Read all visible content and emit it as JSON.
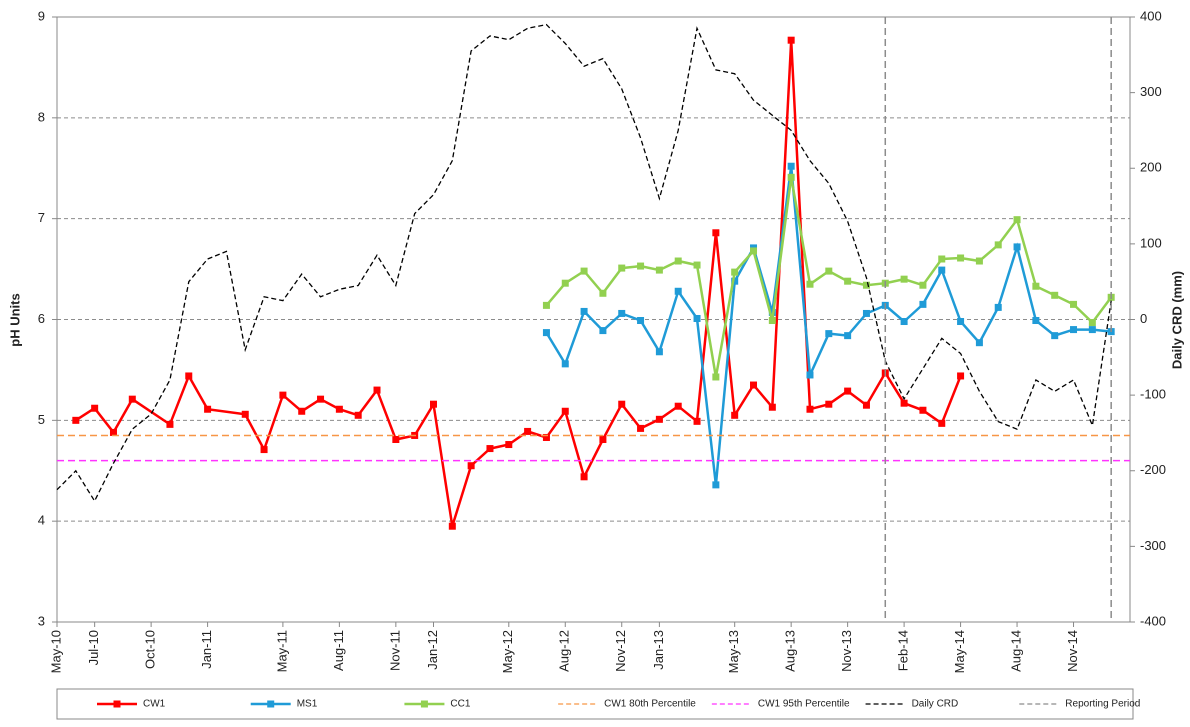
{
  "chart_data": {
    "type": "line",
    "y_label": "pH Units",
    "y2_label": "Daily CRD (mm)",
    "xlim": [
      "2010-05",
      "2015-02"
    ],
    "xticks": [
      {
        "value": "2010-05",
        "label": "May-10"
      },
      {
        "value": "2010-07",
        "label": "Jul-10"
      },
      {
        "value": "2010-10",
        "label": "Oct-10"
      },
      {
        "value": "2011-01",
        "label": "Jan-11"
      },
      {
        "value": "2011-05",
        "label": "May-11"
      },
      {
        "value": "2011-08",
        "label": "Aug-11"
      },
      {
        "value": "2011-11",
        "label": "Nov-11"
      },
      {
        "value": "2012-01",
        "label": "Jan-12"
      },
      {
        "value": "2012-05",
        "label": "May-12"
      },
      {
        "value": "2012-08",
        "label": "Aug-12"
      },
      {
        "value": "2012-11",
        "label": "Nov-12"
      },
      {
        "value": "2013-01",
        "label": "Jan-13"
      },
      {
        "value": "2013-05",
        "label": "May-13"
      },
      {
        "value": "2013-08",
        "label": "Aug-13"
      },
      {
        "value": "2013-11",
        "label": "Nov-13"
      },
      {
        "value": "2014-02",
        "label": "Feb-14"
      },
      {
        "value": "2014-05",
        "label": "May-14"
      },
      {
        "value": "2014-08",
        "label": "Aug-14"
      },
      {
        "value": "2014-11",
        "label": "Nov-14"
      }
    ],
    "ylim": [
      3,
      9
    ],
    "yticks": [
      3,
      4,
      5,
      6,
      7,
      8,
      9
    ],
    "y2lim": [
      -400,
      400
    ],
    "y2ticks": [
      -400,
      -300,
      -200,
      -100,
      0,
      100,
      200,
      300,
      400
    ],
    "grid": true,
    "legend": "bottom",
    "series": [
      {
        "name": "CW1",
        "color": "#ff0000",
        "marker": "square",
        "line_style": "solid",
        "x": [
          "2010-06",
          "2010-07",
          "2010-08",
          "2010-09",
          "2010-11",
          "2010-12",
          "2011-01",
          "2011-03",
          "2011-04",
          "2011-05",
          "2011-06",
          "2011-07",
          "2011-08",
          "2011-09",
          "2011-10",
          "2011-11",
          "2011-12",
          "2012-01",
          "2012-02",
          "2012-03",
          "2012-04",
          "2012-05",
          "2012-06",
          "2012-07",
          "2012-08",
          "2012-09",
          "2012-10",
          "2012-11",
          "2012-12",
          "2013-01",
          "2013-02",
          "2013-03",
          "2013-04",
          "2013-05",
          "2013-06",
          "2013-07",
          "2013-08",
          "2013-09",
          "2013-10",
          "2013-11",
          "2013-12",
          "2014-01",
          "2014-02",
          "2014-03",
          "2014-04",
          "2014-05"
        ],
        "values": [
          5.0,
          5.12,
          4.88,
          5.21,
          4.96,
          5.44,
          5.11,
          5.06,
          4.71,
          5.25,
          5.09,
          5.21,
          5.11,
          5.05,
          5.3,
          4.81,
          4.85,
          5.16,
          3.95,
          4.55,
          4.72,
          4.76,
          4.89,
          4.83,
          5.09,
          4.44,
          4.81,
          5.16,
          4.92,
          5.01,
          5.14,
          4.99,
          6.86,
          5.05,
          5.35,
          5.13,
          8.77,
          5.11,
          5.16,
          5.29,
          5.15,
          5.47,
          5.17,
          5.1,
          4.97,
          5.44
        ]
      },
      {
        "name": "MS1",
        "color": "#1f9bd7",
        "marker": "square",
        "line_style": "solid",
        "x": [
          "2012-07",
          "2012-08",
          "2012-09",
          "2012-10",
          "2012-11",
          "2012-12",
          "2013-01",
          "2013-02",
          "2013-03",
          "2013-04",
          "2013-05",
          "2013-06",
          "2013-07",
          "2013-08",
          "2013-09",
          "2013-10",
          "2013-11",
          "2013-12",
          "2014-01",
          "2014-02",
          "2014-03",
          "2014-04",
          "2014-05",
          "2014-06",
          "2014-07",
          "2014-08",
          "2014-09",
          "2014-10",
          "2014-11",
          "2014-12",
          "2015-01"
        ],
        "values": [
          5.87,
          5.56,
          6.08,
          5.89,
          6.06,
          5.99,
          5.68,
          6.28,
          6.01,
          4.36,
          6.38,
          6.71,
          6.07,
          7.52,
          5.45,
          5.86,
          5.84,
          6.06,
          6.14,
          5.98,
          6.15,
          6.49,
          5.98,
          5.77,
          6.12,
          6.72,
          5.99,
          5.84,
          5.9,
          5.9,
          5.88
        ]
      },
      {
        "name": "CC1",
        "color": "#92d050",
        "marker": "square",
        "line_style": "solid",
        "x": [
          "2012-07",
          "2012-08",
          "2012-09",
          "2012-10",
          "2012-11",
          "2012-12",
          "2013-01",
          "2013-02",
          "2013-03",
          "2013-04",
          "2013-05",
          "2013-06",
          "2013-07",
          "2013-08",
          "2013-09",
          "2013-10",
          "2013-11",
          "2013-12",
          "2014-01",
          "2014-02",
          "2014-03",
          "2014-04",
          "2014-05",
          "2014-06",
          "2014-07",
          "2014-08",
          "2014-09",
          "2014-10",
          "2014-11",
          "2014-12",
          "2015-01"
        ],
        "values": [
          6.14,
          6.36,
          6.48,
          6.26,
          6.51,
          6.53,
          6.49,
          6.58,
          6.54,
          5.43,
          6.47,
          6.68,
          5.99,
          7.41,
          6.35,
          6.48,
          6.38,
          6.34,
          6.36,
          6.4,
          6.34,
          6.6,
          6.61,
          6.58,
          6.74,
          6.99,
          6.33,
          6.24,
          6.15,
          5.97,
          6.22
        ]
      },
      {
        "name": "CW1 80th Percentile",
        "color": "#f79646",
        "line_style": "dashed",
        "value": 4.85
      },
      {
        "name": "CW1 95th Percentile",
        "color": "#ff33ff",
        "line_style": "dashed",
        "value": 4.6
      },
      {
        "name": "Daily CRD",
        "color": "#000000",
        "line_style": "dashed",
        "axis": "y2",
        "x": [
          "2010-05",
          "2010-06",
          "2010-07",
          "2010-08",
          "2010-09",
          "2010-10",
          "2010-11",
          "2010-12",
          "2011-01",
          "2011-02",
          "2011-03",
          "2011-04",
          "2011-05",
          "2011-06",
          "2011-07",
          "2011-08",
          "2011-09",
          "2011-10",
          "2011-11",
          "2011-12",
          "2012-01",
          "2012-02",
          "2012-03",
          "2012-04",
          "2012-05",
          "2012-06",
          "2012-07",
          "2012-08",
          "2012-09",
          "2012-10",
          "2012-11",
          "2012-12",
          "2013-01",
          "2013-02",
          "2013-03",
          "2013-04",
          "2013-05",
          "2013-06",
          "2013-07",
          "2013-08",
          "2013-09",
          "2013-10",
          "2013-11",
          "2013-12",
          "2014-01",
          "2014-02",
          "2014-03",
          "2014-04",
          "2014-05",
          "2014-06",
          "2014-07",
          "2014-08",
          "2014-09",
          "2014-10",
          "2014-11",
          "2014-12",
          "2015-01"
        ],
        "values": [
          -225,
          -200,
          -240,
          -190,
          -145,
          -125,
          -80,
          50,
          80,
          90,
          -40,
          30,
          25,
          60,
          30,
          40,
          45,
          85,
          45,
          140,
          165,
          210,
          355,
          375,
          370,
          385,
          390,
          365,
          335,
          345,
          305,
          240,
          160,
          250,
          385,
          330,
          325,
          290,
          270,
          250,
          210,
          180,
          130,
          55,
          -55,
          -105,
          -65,
          -25,
          -45,
          -95,
          -135,
          -145,
          -80,
          -95,
          -80,
          -140,
          25
        ]
      },
      {
        "name": "Reporting Period",
        "color": "#8c8c8c",
        "line_style": "dashed",
        "x": [
          "2014-01",
          "2015-01"
        ]
      }
    ]
  }
}
